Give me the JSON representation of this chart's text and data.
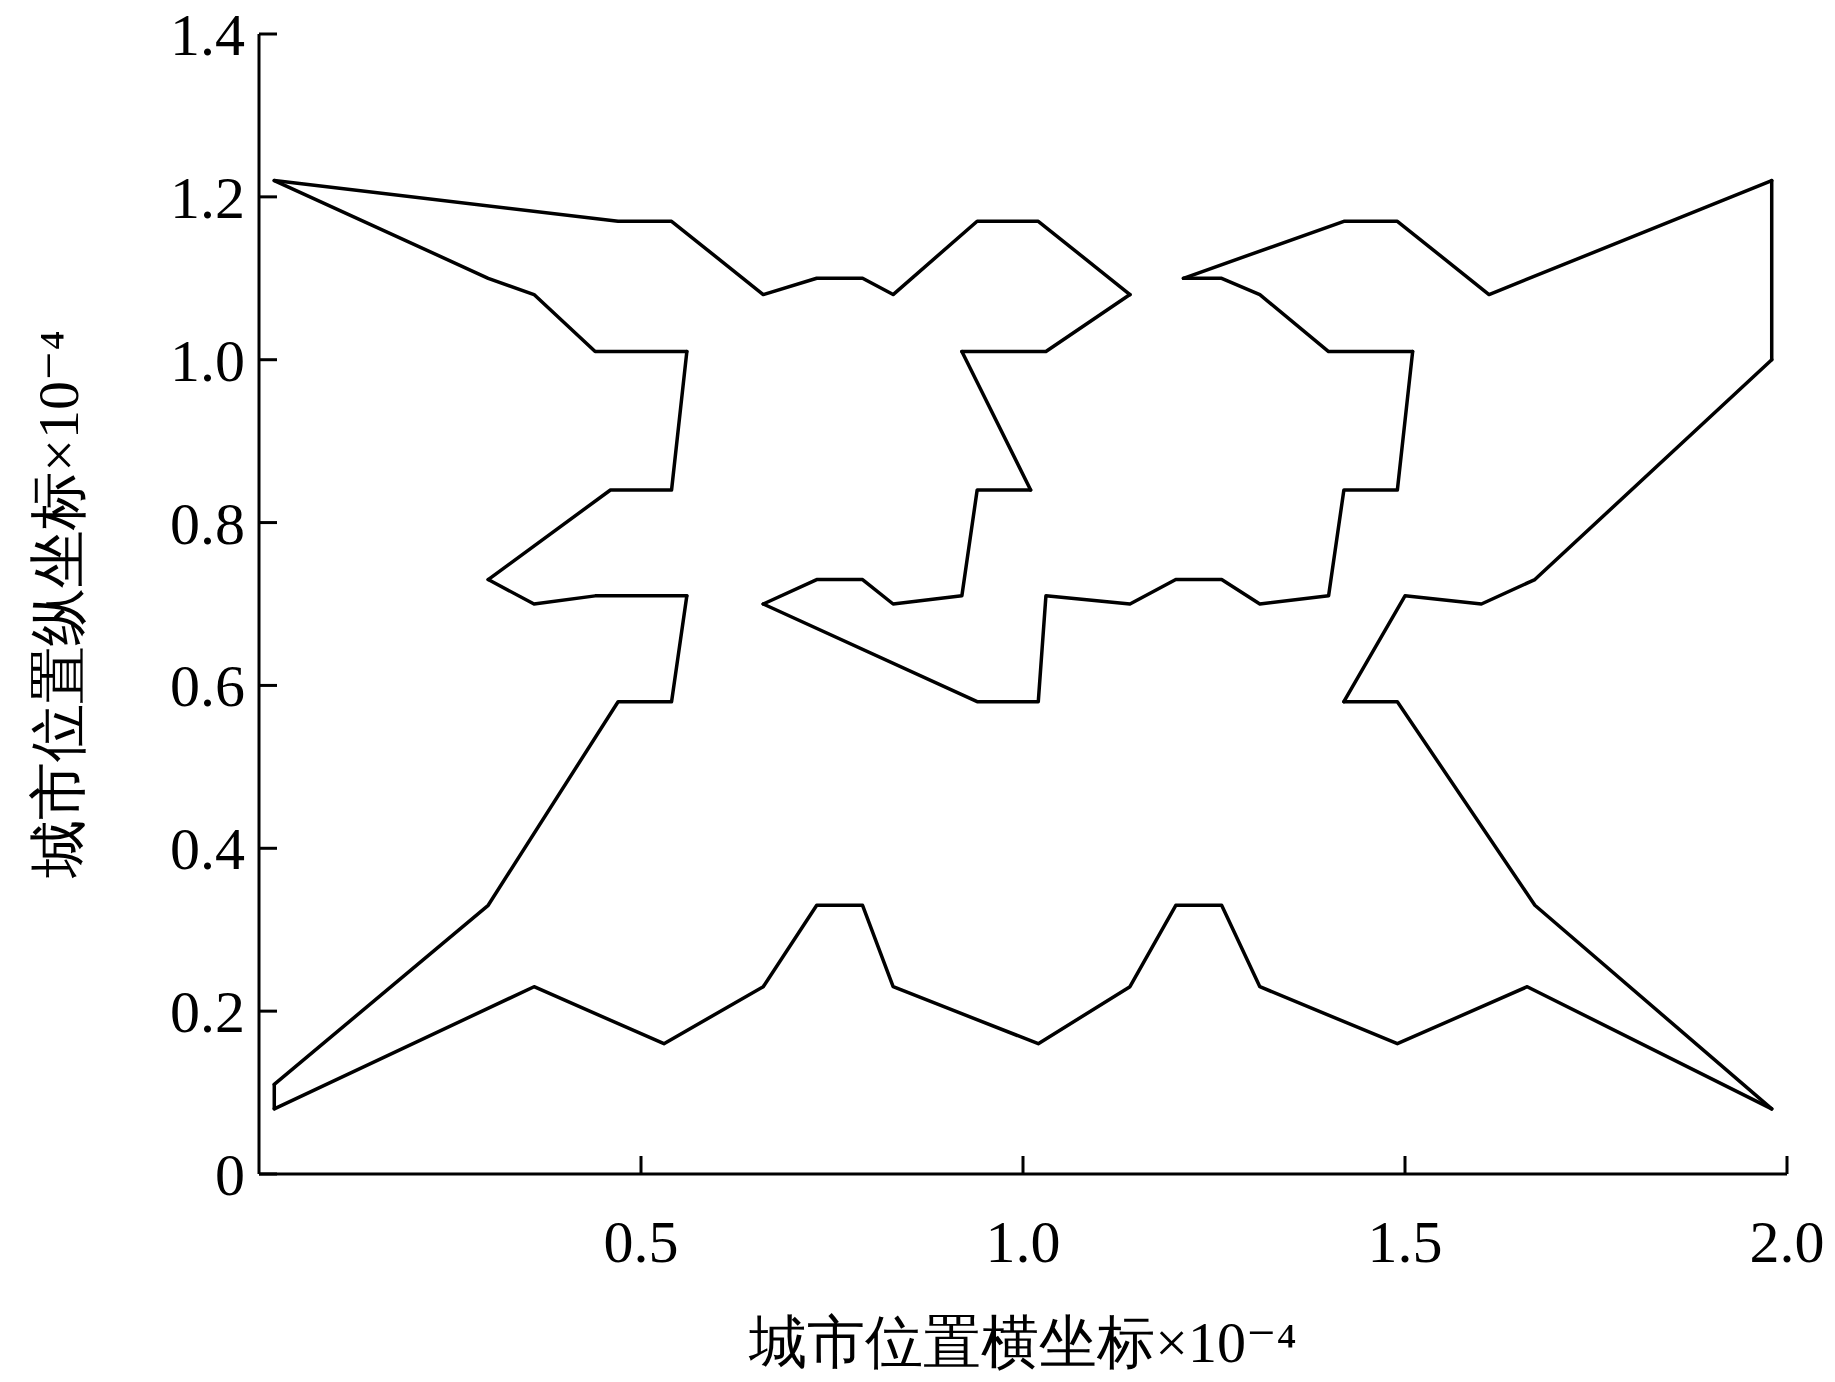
{
  "chart_data": {
    "type": "line",
    "xlabel": "城市位置横坐标×10⁻⁴",
    "ylabel": "城市位置纵坐标×10⁻⁴",
    "xlim": [
      0,
      2.0
    ],
    "ylim": [
      0,
      1.4
    ],
    "xticks": [
      0.5,
      {
        "value": 1,
        "label": "1.0"
      },
      1.5,
      {
        "value": 2,
        "label": "2.0"
      }
    ],
    "yticks": [
      0,
      0.2,
      0.4,
      0.6,
      0.8,
      {
        "value": 1,
        "label": "1.0"
      },
      1.2,
      1.4
    ],
    "series": [
      {
        "color": "#000000",
        "x": [
          0.02,
          0.3,
          0.36,
          0.44,
          0.56
        ],
        "values": [
          1.22,
          1.1,
          1.08,
          1.01,
          1.01
        ]
      },
      {
        "color": "#000000",
        "x": [
          0.56,
          0.54,
          0.46,
          0.3
        ],
        "values": [
          1.01,
          0.84,
          0.84,
          0.73
        ]
      },
      {
        "color": "#000000",
        "x": [
          0.3,
          0.36,
          0.44,
          0.56
        ],
        "values": [
          0.73,
          0.7,
          0.71,
          0.71
        ]
      },
      {
        "color": "#000000",
        "x": [
          0.56,
          0.54,
          0.47,
          0.3,
          0.02
        ],
        "values": [
          0.71,
          0.58,
          0.58,
          0.33,
          0.11
        ]
      },
      {
        "color": "#000000",
        "x": [
          0.02,
          0.02
        ],
        "values": [
          0.11,
          0.08
        ]
      },
      {
        "color": "#000000",
        "x": [
          0.02,
          0.36,
          0.53,
          0.66,
          0.73,
          0.79,
          0.83,
          1.02,
          1.14,
          1.2,
          1.26,
          1.31,
          1.49,
          1.66,
          1.98
        ],
        "values": [
          0.08,
          0.23,
          0.16,
          0.23,
          0.33,
          0.33,
          0.23,
          0.16,
          0.23,
          0.33,
          0.33,
          0.23,
          0.16,
          0.23,
          0.08
        ]
      },
      {
        "color": "#000000",
        "x": [
          1.98,
          1.67,
          1.49,
          1.42
        ],
        "values": [
          0.08,
          0.33,
          0.58,
          0.58
        ]
      },
      {
        "color": "#000000",
        "x": [
          1.42,
          1.5,
          1.6,
          1.67,
          1.98
        ],
        "values": [
          0.58,
          0.71,
          0.7,
          0.73,
          1.0
        ]
      },
      {
        "color": "#000000",
        "x": [
          1.98,
          1.98
        ],
        "values": [
          1.0,
          1.22
        ]
      },
      {
        "color": "#000000",
        "x": [
          1.98,
          1.61,
          1.49,
          1.42,
          1.21
        ],
        "values": [
          1.22,
          1.08,
          1.17,
          1.17,
          1.1
        ]
      },
      {
        "color": "#000000",
        "x": [
          1.21,
          1.26,
          1.31,
          1.4,
          1.51
        ],
        "values": [
          1.1,
          1.1,
          1.08,
          1.01,
          1.01
        ]
      },
      {
        "color": "#000000",
        "x": [
          1.51,
          1.49,
          1.42,
          1.4,
          1.31,
          1.26,
          1.2,
          1.14,
          1.03,
          1.02,
          0.94,
          0.66
        ],
        "values": [
          1.01,
          0.84,
          0.84,
          0.71,
          0.7,
          0.73,
          0.73,
          0.7,
          0.71,
          0.58,
          0.58,
          0.7
        ]
      },
      {
        "color": "#000000",
        "x": [
          0.66,
          0.73,
          0.79,
          0.83,
          0.92,
          0.94,
          1.01
        ],
        "values": [
          0.7,
          0.73,
          0.73,
          0.7,
          0.71,
          0.84,
          0.84
        ]
      },
      {
        "color": "#000000",
        "x": [
          1.01,
          0.92
        ],
        "values": [
          0.84,
          1.01
        ]
      },
      {
        "color": "#000000",
        "x": [
          0.92,
          1.03,
          1.14
        ],
        "values": [
          1.01,
          1.01,
          1.08
        ]
      },
      {
        "color": "#000000",
        "x": [
          1.14,
          1.02,
          0.94,
          0.83,
          0.79,
          0.73,
          0.66,
          0.54,
          0.47,
          0.02
        ],
        "values": [
          1.08,
          1.17,
          1.17,
          1.08,
          1.1,
          1.1,
          1.08,
          1.17,
          1.17,
          1.22
        ]
      }
    ]
  }
}
